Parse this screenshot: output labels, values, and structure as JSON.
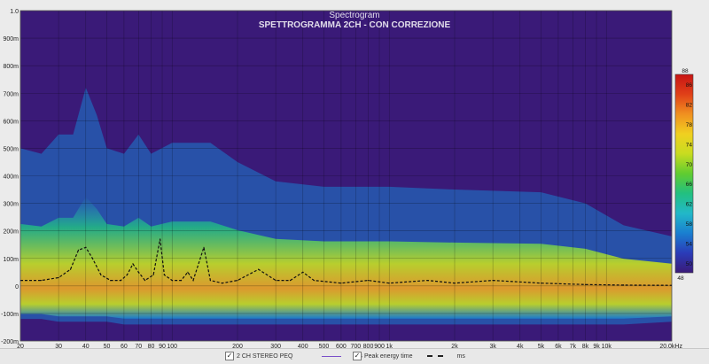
{
  "chart_data": {
    "type": "heatmap",
    "app_title": "Spectrogram",
    "title": "SPETTROGRAMMA 2CH - CON CORREZIONE",
    "y_axis": {
      "unit": "s",
      "ylim": [
        -0.2,
        1.0
      ],
      "ticks": [
        {
          "value": 1.0,
          "label": "1.0"
        },
        {
          "value": 0.9,
          "label": "900m"
        },
        {
          "value": 0.8,
          "label": "800m"
        },
        {
          "value": 0.7,
          "label": "700m"
        },
        {
          "value": 0.6,
          "label": "600m"
        },
        {
          "value": 0.5,
          "label": "500m"
        },
        {
          "value": 0.4,
          "label": "400m"
        },
        {
          "value": 0.3,
          "label": "300m"
        },
        {
          "value": 0.2,
          "label": "200m"
        },
        {
          "value": 0.1,
          "label": "100m"
        },
        {
          "value": 0.0,
          "label": "0"
        },
        {
          "value": -0.1,
          "label": "-100m"
        },
        {
          "value": -0.2,
          "label": "-200m"
        }
      ]
    },
    "x_axis": {
      "scale": "log",
      "xlim": [
        20,
        20000
      ],
      "ticks": [
        {
          "value": 20,
          "label": "20"
        },
        {
          "value": 30,
          "label": "30"
        },
        {
          "value": 40,
          "label": "40"
        },
        {
          "value": 50,
          "label": "50"
        },
        {
          "value": 60,
          "label": "60"
        },
        {
          "value": 70,
          "label": "70"
        },
        {
          "value": 80,
          "label": "80"
        },
        {
          "value": 90,
          "label": "90"
        },
        {
          "value": 100,
          "label": "100"
        },
        {
          "value": 200,
          "label": "200"
        },
        {
          "value": 300,
          "label": "300"
        },
        {
          "value": 400,
          "label": "400"
        },
        {
          "value": 500,
          "label": "500"
        },
        {
          "value": 600,
          "label": "600"
        },
        {
          "value": 700,
          "label": "700"
        },
        {
          "value": 800,
          "label": "800"
        },
        {
          "value": 900,
          "label": "900"
        },
        {
          "value": 1000,
          "label": "1k"
        },
        {
          "value": 2000,
          "label": "2k"
        },
        {
          "value": 3000,
          "label": "3k"
        },
        {
          "value": 4000,
          "label": "4k"
        },
        {
          "value": 5000,
          "label": "5k"
        },
        {
          "value": 6000,
          "label": "6k"
        },
        {
          "value": 7000,
          "label": "7k"
        },
        {
          "value": 8000,
          "label": "8k"
        },
        {
          "value": 9000,
          "label": "9k"
        },
        {
          "value": 10000,
          "label": "10k"
        },
        {
          "value": 20000,
          "label": "20.0kHz"
        }
      ]
    },
    "colorbar": {
      "range": [
        48,
        88
      ],
      "ticks": [
        "88",
        "86",
        "82",
        "78",
        "74",
        "70",
        "66",
        "62",
        "58",
        "54",
        "50",
        "48"
      ],
      "colors": [
        "#3a1a78",
        "#2a3cb8",
        "#1a7fd0",
        "#22b8c8",
        "#22c080",
        "#60cc30",
        "#c8dc20",
        "#f0d020",
        "#f09020",
        "#e04018",
        "#c81414"
      ]
    },
    "energy_envelope": [
      {
        "f": 20,
        "top": 0.5,
        "bottom": -0.12
      },
      {
        "f": 25,
        "top": 0.48,
        "bottom": -0.12
      },
      {
        "f": 30,
        "top": 0.55,
        "bottom": -0.13
      },
      {
        "f": 35,
        "top": 0.55,
        "bottom": -0.13
      },
      {
        "f": 40,
        "top": 0.72,
        "bottom": -0.13
      },
      {
        "f": 45,
        "top": 0.62,
        "bottom": -0.13
      },
      {
        "f": 50,
        "top": 0.5,
        "bottom": -0.13
      },
      {
        "f": 60,
        "top": 0.48,
        "bottom": -0.14
      },
      {
        "f": 70,
        "top": 0.55,
        "bottom": -0.14
      },
      {
        "f": 80,
        "top": 0.48,
        "bottom": -0.14
      },
      {
        "f": 100,
        "top": 0.52,
        "bottom": -0.14
      },
      {
        "f": 150,
        "top": 0.52,
        "bottom": -0.14
      },
      {
        "f": 200,
        "top": 0.45,
        "bottom": -0.14
      },
      {
        "f": 300,
        "top": 0.38,
        "bottom": -0.14
      },
      {
        "f": 500,
        "top": 0.36,
        "bottom": -0.14
      },
      {
        "f": 1000,
        "top": 0.36,
        "bottom": -0.14
      },
      {
        "f": 2000,
        "top": 0.35,
        "bottom": -0.14
      },
      {
        "f": 5000,
        "top": 0.34,
        "bottom": -0.14
      },
      {
        "f": 8000,
        "top": 0.3,
        "bottom": -0.14
      },
      {
        "f": 12000,
        "top": 0.22,
        "bottom": -0.14
      },
      {
        "f": 20000,
        "top": 0.18,
        "bottom": -0.13
      }
    ],
    "series": [
      {
        "name": "Peak energy time",
        "style": "dashed",
        "color": "#111111",
        "points": [
          {
            "f": 20,
            "t": 0.02
          },
          {
            "f": 25,
            "t": 0.02
          },
          {
            "f": 30,
            "t": 0.03
          },
          {
            "f": 34,
            "t": 0.06
          },
          {
            "f": 37,
            "t": 0.13
          },
          {
            "f": 40,
            "t": 0.14
          },
          {
            "f": 43,
            "t": 0.1
          },
          {
            "f": 47,
            "t": 0.04
          },
          {
            "f": 52,
            "t": 0.02
          },
          {
            "f": 58,
            "t": 0.02
          },
          {
            "f": 62,
            "t": 0.04
          },
          {
            "f": 66,
            "t": 0.08
          },
          {
            "f": 70,
            "t": 0.05
          },
          {
            "f": 75,
            "t": 0.02
          },
          {
            "f": 82,
            "t": 0.04
          },
          {
            "f": 88,
            "t": 0.17
          },
          {
            "f": 92,
            "t": 0.04
          },
          {
            "f": 100,
            "t": 0.02
          },
          {
            "f": 110,
            "t": 0.02
          },
          {
            "f": 118,
            "t": 0.05
          },
          {
            "f": 125,
            "t": 0.02
          },
          {
            "f": 140,
            "t": 0.14
          },
          {
            "f": 150,
            "t": 0.02
          },
          {
            "f": 170,
            "t": 0.01
          },
          {
            "f": 200,
            "t": 0.02
          },
          {
            "f": 250,
            "t": 0.06
          },
          {
            "f": 300,
            "t": 0.02
          },
          {
            "f": 350,
            "t": 0.02
          },
          {
            "f": 400,
            "t": 0.05
          },
          {
            "f": 450,
            "t": 0.02
          },
          {
            "f": 600,
            "t": 0.01
          },
          {
            "f": 800,
            "t": 0.02
          },
          {
            "f": 1000,
            "t": 0.01
          },
          {
            "f": 1500,
            "t": 0.02
          },
          {
            "f": 2000,
            "t": 0.01
          },
          {
            "f": 3000,
            "t": 0.02
          },
          {
            "f": 5000,
            "t": 0.01
          },
          {
            "f": 8000,
            "t": 0.005
          },
          {
            "f": 12000,
            "t": 0.003
          },
          {
            "f": 20000,
            "t": 0.002
          }
        ]
      }
    ],
    "legend": [
      {
        "checked": "✓",
        "label": "2 CH STEREO PEQ",
        "unit": "dB"
      },
      {
        "checked": "✓",
        "label": "Peak energy time",
        "unit": "ms"
      }
    ],
    "grid": true
  }
}
